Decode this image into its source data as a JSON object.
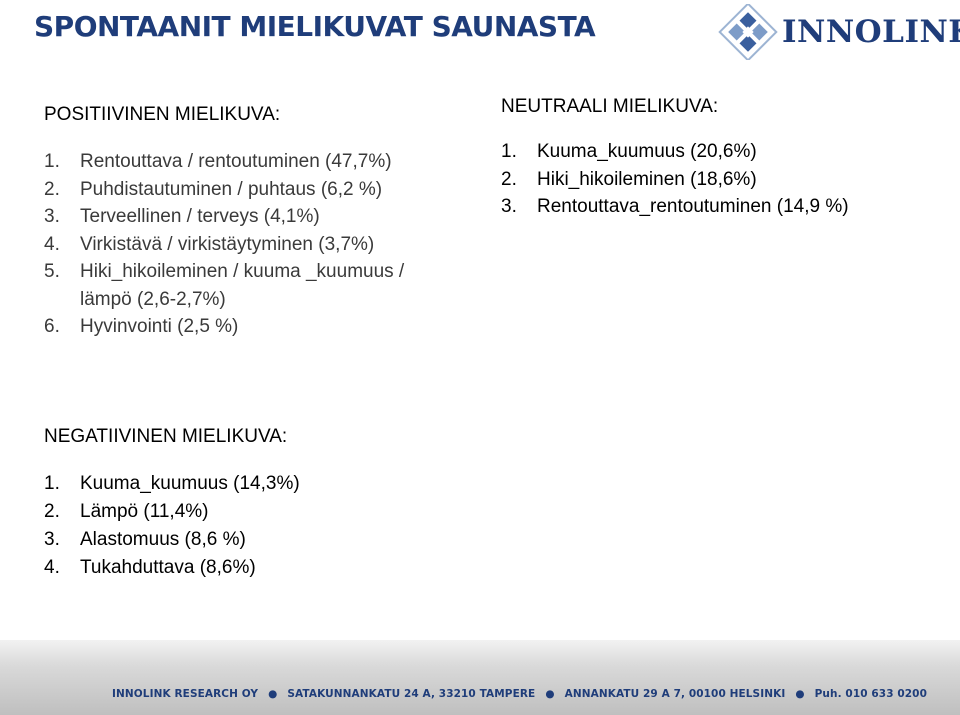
{
  "title": "SPONTAANIT MIELIKUVAT SAUNASTA",
  "logo": {
    "text": "INNOLINK",
    "icon": "innolink-diamond-logo",
    "color": "#1f3d7a"
  },
  "positive": {
    "heading": "POSITIIVINEN MIELIKUVA:",
    "items": [
      {
        "num": "1.",
        "text": "Rentouttava / rentoutuminen  (47,7%)"
      },
      {
        "num": "2.",
        "text": "Puhdistautuminen / puhtaus (6,2 %)"
      },
      {
        "num": "3.",
        "text": "Terveellinen / terveys (4,1%)"
      },
      {
        "num": "4.",
        "text": "Virkistävä / virkistäytyminen (3,7%)"
      },
      {
        "num": "5.",
        "text": "Hiki_hikoileminen / kuuma _kuumuus /"
      },
      {
        "num": "",
        "text": "lämpö (2,6-2,7%)"
      },
      {
        "num": "6.",
        "text": "Hyvinvointi (2,5 %)"
      }
    ]
  },
  "neutral": {
    "heading": "NEUTRAALI MIELIKUVA:",
    "items": [
      {
        "num": "1.",
        "text": "Kuuma_kuumuus (20,6%)"
      },
      {
        "num": "2.",
        "text": "Hiki_hikoileminen  (18,6%)"
      },
      {
        "num": "3.",
        "text": "Rentouttava_rentoutuminen (14,9 %)"
      }
    ]
  },
  "negative": {
    "heading": "NEGATIIVINEN MIELIKUVA:",
    "items": [
      {
        "num": "1.",
        "text": "Kuuma_kuumuus (14,3%)"
      },
      {
        "num": "2.",
        "text": "Lämpö  (11,4%)"
      },
      {
        "num": "3.",
        "text": "Alastomuus (8,6 %)"
      },
      {
        "num": "4.",
        "text": "Tukahduttava (8,6%)"
      }
    ]
  },
  "footer": {
    "parts": [
      "INNOLINK RESEARCH OY",
      "SATAKUNNANKATU 24 A, 33210 TAMPERE",
      "ANNANKATU 29 A 7, 00100 HELSINKI",
      "Puh.  010 633 0200"
    ],
    "separator": "●"
  }
}
